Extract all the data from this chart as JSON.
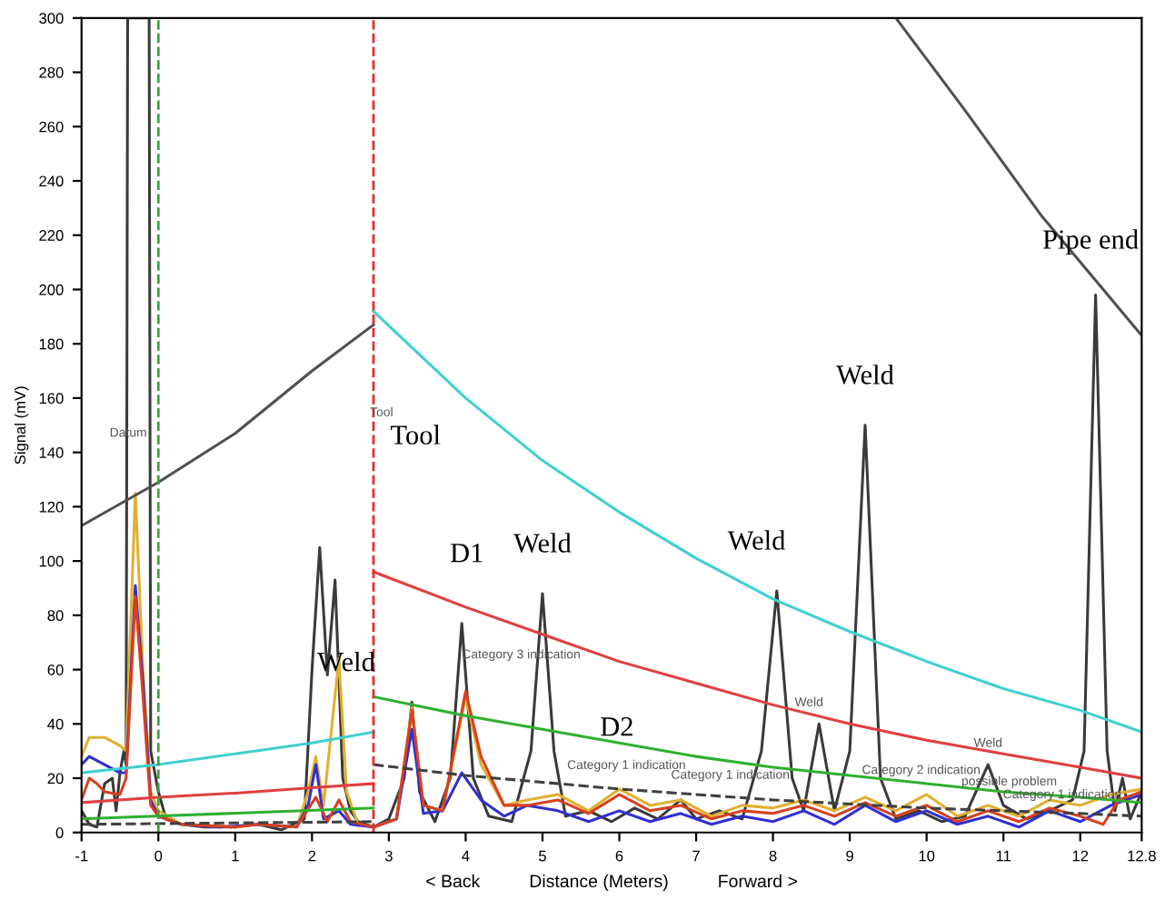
{
  "chart_data": {
    "type": "line",
    "xlabel": "< Back          Distance (Meters)          Forward >",
    "ylabel": "Signal (mV)",
    "xlim": [
      -1,
      12.8
    ],
    "xticks": [
      -1,
      0,
      1,
      2,
      3,
      4,
      5,
      6,
      7,
      8,
      9,
      10,
      11,
      12,
      12.8
    ],
    "ylim": [
      0,
      300
    ],
    "yticks": [
      0,
      20,
      40,
      60,
      80,
      100,
      120,
      140,
      160,
      180,
      200,
      220,
      240,
      260,
      280,
      300
    ],
    "grid": false,
    "legend": false,
    "series": [
      {
        "color": "#3a3a3a",
        "line_style": "solid",
        "x": [
          -1,
          -0.9,
          -0.8,
          -0.7,
          -0.6,
          -0.55,
          -0.5,
          -0.45,
          -0.42,
          -0.4,
          -0.12,
          -0.1,
          0,
          0.1,
          0.3,
          0.6,
          1.0,
          1.3,
          1.6,
          1.9,
          2.0,
          2.1,
          2.2,
          2.3,
          2.4,
          2.5,
          2.6,
          2.8,
          3.0,
          3.2,
          3.3,
          3.4,
          3.6,
          3.8,
          3.95,
          4.1,
          4.3,
          4.6,
          4.85,
          5.0,
          5.15,
          5.3,
          5.6,
          5.9,
          6.2,
          6.5,
          6.8,
          7.0,
          7.3,
          7.6,
          7.85,
          8.05,
          8.25,
          8.4,
          8.6,
          8.8,
          9.0,
          9.2,
          9.4,
          9.6,
          9.9,
          10.2,
          10.5,
          10.8,
          11.0,
          11.3,
          11.6,
          11.9,
          12.05,
          12.2,
          12.35,
          12.45,
          12.55,
          12.65,
          12.8
        ],
        "values": [
          8,
          3,
          2,
          18,
          20,
          8,
          22,
          30,
          25,
          300,
          300,
          30,
          15,
          5,
          3,
          2,
          2,
          3,
          1,
          5,
          60,
          105,
          58,
          93,
          20,
          8,
          4,
          2,
          5,
          20,
          48,
          15,
          4,
          20,
          77,
          20,
          6,
          4,
          30,
          88,
          30,
          6,
          8,
          4,
          9,
          5,
          12,
          5,
          8,
          5,
          30,
          89,
          20,
          8,
          40,
          8,
          30,
          150,
          20,
          5,
          8,
          4,
          6,
          25,
          10,
          5,
          8,
          12,
          30,
          198,
          30,
          8,
          20,
          5,
          15
        ]
      },
      {
        "color": "#e0b030",
        "line_style": "solid",
        "x": [
          -1,
          -0.9,
          -0.7,
          -0.5,
          -0.42,
          -0.3,
          -0.2,
          -0.1,
          0,
          0.3,
          1,
          1.3,
          1.8,
          1.95,
          2.05,
          2.15,
          2.35,
          2.45,
          2.6,
          2.8,
          3.1,
          3.3,
          3.45,
          3.7,
          4.0,
          4.2,
          4.5,
          4.8,
          5.2,
          5.6,
          6.0,
          6.4,
          6.8,
          7.2,
          7.6,
          8.0,
          8.4,
          8.8,
          9.2,
          9.6,
          10.0,
          10.4,
          10.8,
          11.2,
          11.6,
          12.0,
          12.4,
          12.8
        ],
        "values": [
          28,
          35,
          35,
          32,
          30,
          125,
          60,
          15,
          8,
          3,
          2,
          3,
          2,
          15,
          28,
          10,
          64,
          15,
          3,
          2,
          5,
          46,
          10,
          8,
          50,
          25,
          10,
          12,
          14,
          8,
          16,
          10,
          12,
          6,
          10,
          9,
          12,
          8,
          13,
          8,
          14,
          6,
          10,
          6,
          12,
          10,
          14,
          16
        ]
      },
      {
        "color": "#3030d0",
        "line_style": "solid",
        "x": [
          -1,
          -0.9,
          -0.7,
          -0.5,
          -0.42,
          -0.3,
          -0.2,
          -0.1,
          0,
          0.3,
          0.8,
          1.3,
          1.8,
          1.95,
          2.05,
          2.15,
          2.35,
          2.5,
          2.8,
          3.1,
          3.3,
          3.45,
          3.7,
          3.95,
          4.2,
          4.5,
          4.8,
          5.2,
          5.6,
          6.0,
          6.4,
          6.8,
          7.2,
          7.6,
          8.0,
          8.4,
          8.8,
          9.2,
          9.6,
          10.0,
          10.4,
          10.8,
          11.2,
          11.6,
          12.0,
          12.4,
          12.8
        ],
        "values": [
          25,
          28,
          25,
          22,
          22,
          91,
          55,
          12,
          6,
          3,
          2,
          3,
          2,
          10,
          25,
          5,
          8,
          3,
          2,
          5,
          38,
          7,
          8,
          22,
          12,
          6,
          10,
          8,
          4,
          8,
          4,
          7,
          3,
          6,
          4,
          8,
          3,
          10,
          4,
          8,
          3,
          6,
          2,
          8,
          4,
          10,
          14
        ]
      },
      {
        "color": "#d84020",
        "line_style": "solid",
        "x": [
          -1,
          -0.9,
          -0.8,
          -0.7,
          -0.5,
          -0.42,
          -0.3,
          -0.2,
          -0.1,
          0,
          0.3,
          1,
          1.3,
          1.8,
          2.05,
          2.2,
          2.35,
          2.5,
          2.8,
          3.1,
          3.3,
          3.45,
          3.7,
          4.0,
          4.2,
          4.5,
          4.8,
          5.2,
          5.6,
          6.0,
          6.4,
          6.8,
          7.2,
          7.6,
          8.0,
          8.4,
          8.8,
          9.2,
          9.6,
          10.0,
          10.4,
          10.8,
          11.2,
          11.6,
          12.0,
          12.3,
          12.5,
          12.8
        ],
        "values": [
          12,
          20,
          18,
          15,
          14,
          20,
          87,
          50,
          10,
          6,
          3,
          2,
          3,
          2,
          13,
          4,
          12,
          4,
          2,
          5,
          45,
          10,
          8,
          52,
          28,
          10,
          10,
          12,
          7,
          14,
          8,
          10,
          5,
          8,
          7,
          10,
          6,
          11,
          6,
          10,
          4,
          8,
          4,
          9,
          6,
          3,
          12,
          15
        ]
      },
      {
        "color": "#505050",
        "line_style": "solid",
        "x": [
          -1,
          0,
          1,
          2,
          2.8
        ],
        "values": [
          113,
          129,
          147,
          170,
          187
        ]
      },
      {
        "color": "#505050",
        "line_style": "solid",
        "x": [
          9.6,
          10.5,
          11.5,
          12.3,
          12.8
        ],
        "values": [
          300,
          266,
          227,
          200,
          183
        ]
      },
      {
        "color": "#40d0d0",
        "line_style": "solid",
        "x": [
          -1,
          0,
          1,
          2,
          2.8
        ],
        "values": [
          22,
          25,
          29,
          33,
          37
        ]
      },
      {
        "color": "#40d0d0",
        "line_style": "solid",
        "x": [
          2.8,
          4,
          5,
          6,
          7,
          8,
          9,
          10,
          11,
          12,
          12.8
        ],
        "values": [
          192,
          160,
          137,
          118,
          101,
          86,
          74,
          63,
          53,
          45,
          37
        ]
      },
      {
        "color": "#e04040",
        "line_style": "solid",
        "x": [
          -1,
          0,
          1,
          2,
          2.8
        ],
        "values": [
          11,
          13,
          14.5,
          16.5,
          18
        ]
      },
      {
        "color": "#e04040",
        "line_style": "solid",
        "x": [
          2.8,
          4,
          5,
          6,
          7,
          8,
          9,
          10,
          11,
          12,
          12.8
        ],
        "values": [
          96,
          83,
          73,
          63,
          55,
          47,
          40,
          34,
          29,
          24,
          20
        ]
      },
      {
        "color": "#30b030",
        "line_style": "solid",
        "x": [
          -1,
          2.8
        ],
        "values": [
          5,
          9
        ]
      },
      {
        "color": "#30b030",
        "line_style": "solid",
        "x": [
          2.8,
          4,
          5,
          6,
          7,
          8,
          9,
          10,
          11,
          12,
          12.8
        ],
        "values": [
          50,
          43,
          38,
          33,
          28,
          24,
          21,
          18,
          15,
          13,
          11
        ]
      },
      {
        "color": "#404040",
        "line_style": "dashed",
        "x": [
          -1,
          2.8
        ],
        "values": [
          3,
          4
        ]
      },
      {
        "color": "#404040",
        "line_style": "dashed",
        "x": [
          2.8,
          4,
          6,
          8,
          10,
          12,
          12.8
        ],
        "values": [
          25,
          21,
          16,
          12,
          9,
          7,
          6
        ]
      }
    ],
    "ref_lines": [
      {
        "axis": "x",
        "value": 0,
        "color": "#40a040",
        "line_style": "dashed",
        "label": "Datum"
      },
      {
        "axis": "x",
        "value": 2.8,
        "color": "#e03030",
        "line_style": "dashed"
      }
    ],
    "annotations": [
      {
        "text": "Weld",
        "x": 3.3,
        "y": 48
      },
      {
        "text": "D1",
        "x": 3.95,
        "y": 77
      },
      {
        "text": "Weld",
        "x": 5.0,
        "y": 88
      },
      {
        "text": "Weld",
        "x": 8.05,
        "y": 89
      },
      {
        "text": "Weld",
        "x": 9.2,
        "y": 150
      },
      {
        "text": "Pipe end",
        "x": 12.2,
        "y": 198
      },
      {
        "text": "Category 3 indication",
        "x": 4.0,
        "y": 52
      },
      {
        "text": "Weld",
        "x": 8.6,
        "y": 40
      },
      {
        "text": "Weld",
        "x": 10.8,
        "y": 25
      },
      "Tool",
      "D2",
      "Tool",
      "Category 1 indication",
      "Category 1 indication",
      "Category 2 indication",
      "possible problem",
      "Category 1 indication"
    ]
  }
}
